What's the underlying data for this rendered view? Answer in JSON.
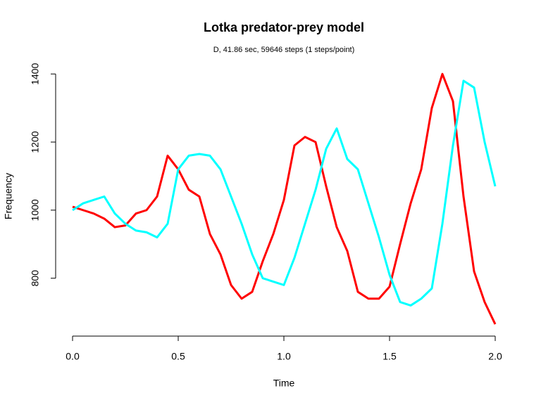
{
  "chart_data": {
    "type": "line",
    "title": "Lotka predator-prey model",
    "subtitle": "D, 41.86 sec, 59646 steps (1 steps/point)",
    "xlabel": "Time",
    "ylabel": "Frequency",
    "x": [
      0,
      0.05,
      0.1,
      0.15,
      0.2,
      0.25,
      0.3,
      0.35,
      0.4,
      0.45,
      0.5,
      0.55,
      0.6,
      0.65,
      0.7,
      0.75,
      0.8,
      0.85,
      0.9,
      0.95,
      1.0,
      1.05,
      1.1,
      1.15,
      1.2,
      1.25,
      1.3,
      1.35,
      1.4,
      1.45,
      1.5,
      1.55,
      1.6,
      1.65,
      1.7,
      1.75,
      1.8,
      1.85,
      1.9,
      1.95,
      2.0
    ],
    "series": [
      {
        "color": "#ff0000",
        "values": [
          1010,
          1000,
          990,
          975,
          950,
          955,
          990,
          1000,
          1040,
          1160,
          1120,
          1060,
          1040,
          930,
          870,
          780,
          740,
          760,
          850,
          930,
          1030,
          1190,
          1215,
          1200,
          1070,
          950,
          880,
          760,
          740,
          740,
          775,
          900,
          1020,
          1120,
          1300,
          1400,
          1320,
          1040,
          820,
          730,
          665
        ]
      },
      {
        "color": "#00ffff",
        "values": [
          1000,
          1020,
          1030,
          1040,
          990,
          960,
          940,
          935,
          920,
          960,
          1120,
          1160,
          1165,
          1160,
          1120,
          1040,
          960,
          870,
          800,
          790,
          780,
          860,
          960,
          1060,
          1180,
          1240,
          1150,
          1120,
          1020,
          920,
          810,
          730,
          720,
          740,
          770,
          960,
          1190,
          1380,
          1360,
          1200,
          1070
        ]
      }
    ],
    "xlim": [
      -0.08,
      2.08
    ],
    "ylim": [
      630,
      1450
    ],
    "xticks": [
      {
        "value": 0,
        "label": "0.0"
      },
      {
        "value": 0.5,
        "label": "0.5"
      },
      {
        "value": 1,
        "label": "1.0"
      },
      {
        "value": 1.5,
        "label": "1.5"
      },
      {
        "value": 2,
        "label": "2.0"
      }
    ],
    "yticks": [
      800,
      1000,
      1200,
      1400
    ],
    "grid": false
  }
}
